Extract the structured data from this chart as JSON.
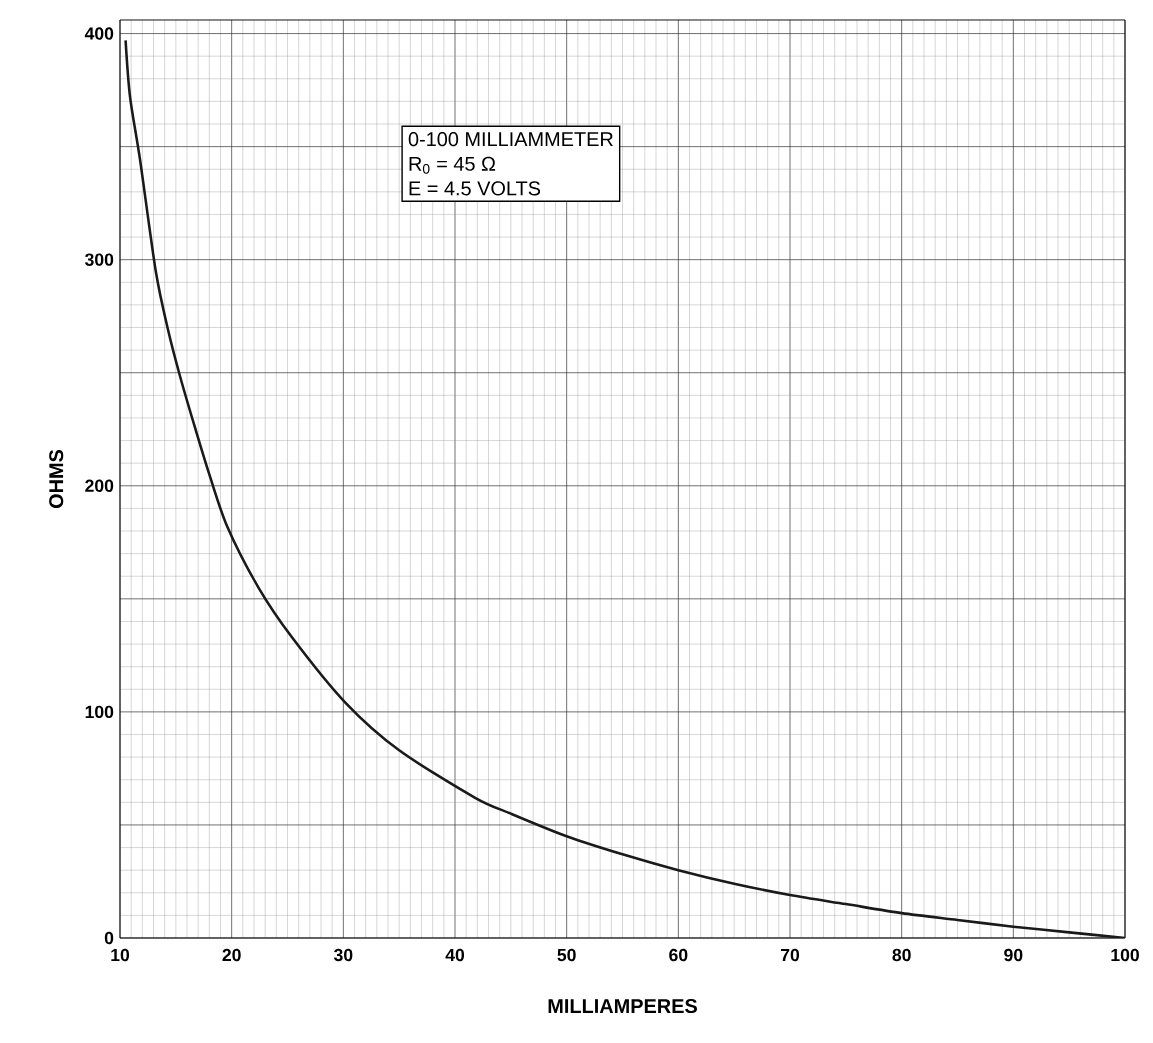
{
  "chart_data": {
    "type": "line",
    "xlabel": "MILLIAMPERES",
    "ylabel": "OHMS",
    "x": [
      10.5,
      10.9,
      11.8,
      13.2,
      14.3,
      15.4,
      16.7,
      18.0,
      19.6,
      22.4,
      25.4,
      30.2,
      35.0,
      41.8,
      45,
      50,
      55,
      60,
      65,
      70,
      75,
      80,
      85,
      90,
      95,
      100
    ],
    "values": [
      397,
      372,
      344,
      295,
      269,
      248,
      226,
      205,
      182,
      155,
      133,
      104,
      83,
      62,
      55,
      45,
      37,
      30,
      24,
      19,
      15,
      11,
      8,
      5,
      2.5,
      0
    ],
    "color": "#1a1a1a",
    "marker": "none",
    "line_style": "solid",
    "xlim": [
      10,
      100
    ],
    "ylim": [
      0,
      406
    ],
    "xticks": [
      10,
      20,
      30,
      40,
      50,
      60,
      70,
      80,
      90,
      100
    ],
    "yticks": [
      0,
      {
        "value": 50,
        "label": null
      },
      100,
      {
        "value": 150,
        "label": null
      },
      200,
      {
        "value": 250,
        "label": null
      },
      300,
      {
        "value": 350,
        "label": null
      },
      400
    ],
    "grid": true,
    "annotations": [
      "0-100 MILLIAMMETER",
      "R$_{0}$ = 45 Ω",
      "E  = 4.5 VOLTS"
    ]
  }
}
